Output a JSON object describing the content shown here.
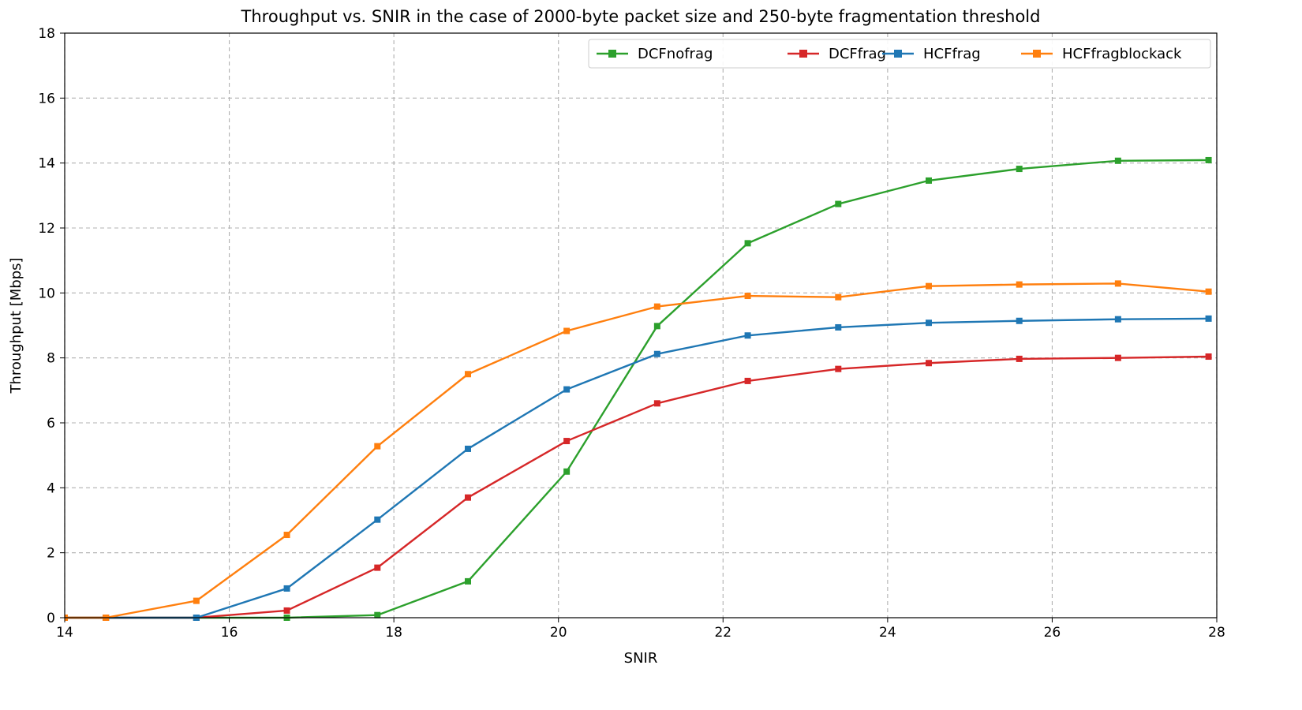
{
  "chart_data": {
    "type": "line",
    "title": "Throughput vs. SNIR in the case of 2000-byte packet size and 250-byte fragmentation threshold",
    "xlabel": "SNIR",
    "ylabel": "Throughput [Mbps]",
    "xlim": [
      14,
      28
    ],
    "ylim": [
      0,
      18
    ],
    "xticks": [
      "14",
      "16",
      "18",
      "20",
      "22",
      "24",
      "26",
      "28"
    ],
    "yticks": [
      "0",
      "2",
      "4",
      "6",
      "8",
      "10",
      "12",
      "14",
      "16",
      "18"
    ],
    "grid": true,
    "legend_position": "top-right",
    "series": [
      {
        "name": "DCFnofrag",
        "color": "#2ca02c",
        "x": [
          14.0,
          14.5,
          15.6,
          16.7,
          17.8,
          18.9,
          20.1,
          21.2,
          22.3,
          23.4,
          24.5,
          25.6,
          26.8,
          27.9
        ],
        "y": [
          0.0,
          0.0,
          0.0,
          0.0,
          0.08,
          1.12,
          4.5,
          8.98,
          11.53,
          12.74,
          13.46,
          13.82,
          14.07,
          14.09
        ]
      },
      {
        "name": "DCFfrag",
        "color": "#d62728",
        "x": [
          14.0,
          14.5,
          15.6,
          16.7,
          17.8,
          18.9,
          20.1,
          21.2,
          22.3,
          23.4,
          24.5,
          25.6,
          26.8,
          27.9
        ],
        "y": [
          0.0,
          0.0,
          0.0,
          0.22,
          1.54,
          3.7,
          5.44,
          6.6,
          7.29,
          7.66,
          7.84,
          7.97,
          8.0,
          8.04
        ]
      },
      {
        "name": "HCFfrag",
        "color": "#1f77b4",
        "x": [
          14.0,
          14.5,
          15.6,
          16.7,
          17.8,
          18.9,
          20.1,
          21.2,
          22.3,
          23.4,
          24.5,
          25.6,
          26.8,
          27.9
        ],
        "y": [
          0.0,
          0.0,
          0.0,
          0.9,
          3.02,
          5.2,
          7.03,
          8.12,
          8.69,
          8.94,
          9.08,
          9.14,
          9.19,
          9.21
        ]
      },
      {
        "name": "HCFfragblockack",
        "color": "#ff7f0e",
        "x": [
          14.0,
          14.5,
          15.6,
          16.7,
          17.8,
          18.9,
          20.1,
          21.2,
          22.3,
          23.4,
          24.5,
          25.6,
          26.8,
          27.9
        ],
        "y": [
          0.0,
          0.0,
          0.52,
          2.55,
          5.28,
          7.5,
          8.83,
          9.58,
          9.91,
          9.87,
          10.21,
          10.26,
          10.29,
          10.04
        ]
      }
    ]
  }
}
